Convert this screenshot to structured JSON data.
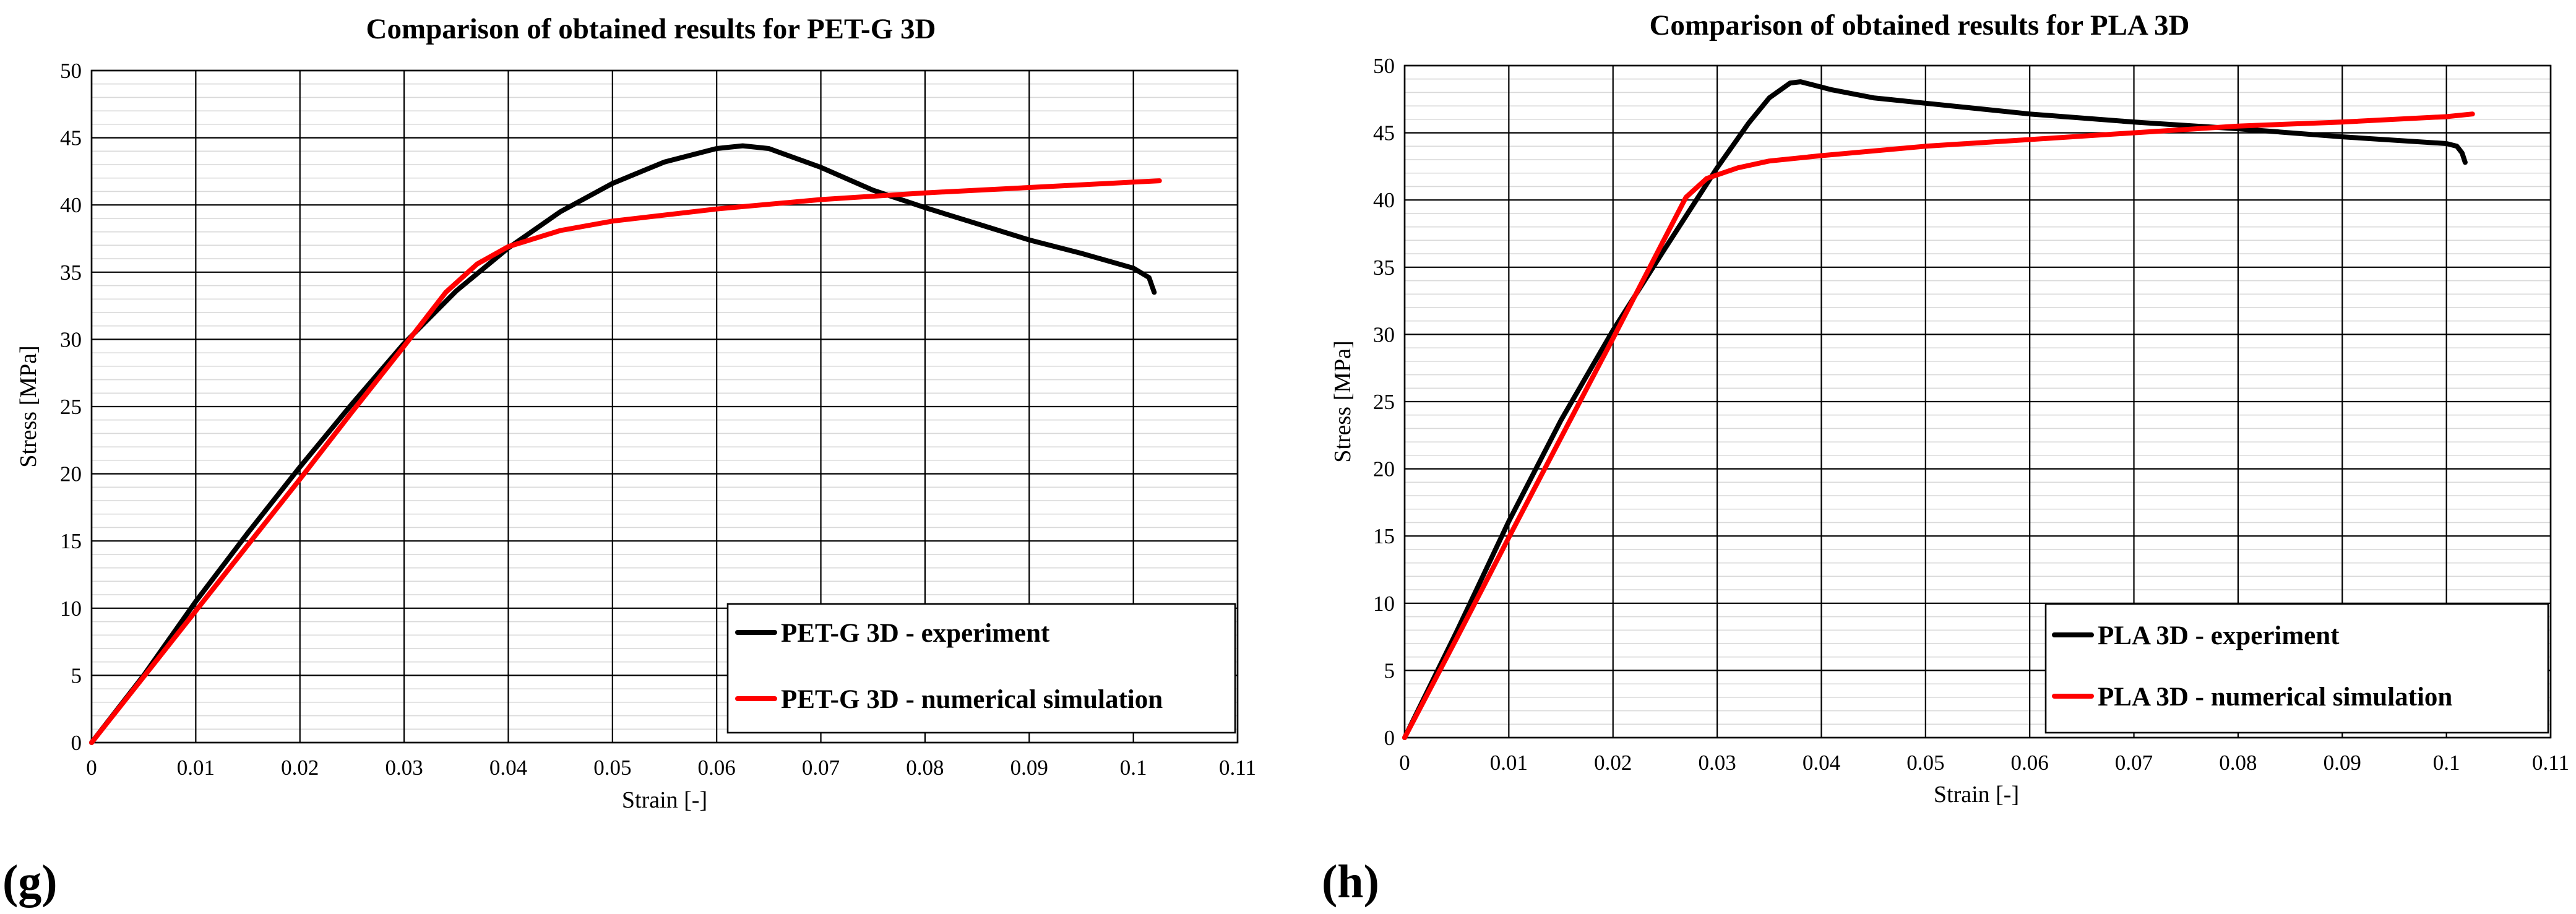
{
  "chart_data": [
    {
      "type": "line",
      "title": "Comparison of obtained results for PET-G 3D",
      "xlabel": "Strain [-]",
      "ylabel": "Stress [MPa]",
      "xlim": [
        0,
        0.11
      ],
      "ylim": [
        0,
        50
      ],
      "xticks": [
        "0",
        "0.01",
        "0.02",
        "0.03",
        "0.04",
        "0.05",
        "0.06",
        "0.07",
        "0.08",
        "0.09",
        "0.1",
        "0.11"
      ],
      "yticks": [
        "0",
        "5",
        "10",
        "15",
        "20",
        "25",
        "30",
        "35",
        "40",
        "45",
        "50"
      ],
      "grid": true,
      "legend_position": "bottom-right",
      "panel_label": "(g)",
      "series": [
        {
          "name": "PET-G 3D - experiment",
          "color": "#000000",
          "points": [
            [
              0,
              0
            ],
            [
              0.005,
              5
            ],
            [
              0.01,
              10.5
            ],
            [
              0.015,
              15.6
            ],
            [
              0.02,
              20.5
            ],
            [
              0.025,
              25.2
            ],
            [
              0.03,
              29.7
            ],
            [
              0.035,
              33.6
            ],
            [
              0.04,
              36.8
            ],
            [
              0.045,
              39.5
            ],
            [
              0.05,
              41.6
            ],
            [
              0.055,
              43.2
            ],
            [
              0.06,
              44.2
            ],
            [
              0.0625,
              44.4
            ],
            [
              0.065,
              44.2
            ],
            [
              0.07,
              42.8
            ],
            [
              0.075,
              41.1
            ],
            [
              0.08,
              39.8
            ],
            [
              0.085,
              38.6
            ],
            [
              0.09,
              37.4
            ],
            [
              0.095,
              36.4
            ],
            [
              0.1,
              35.3
            ],
            [
              0.1015,
              34.6
            ],
            [
              0.102,
              33.5
            ]
          ]
        },
        {
          "name": "PET-G 3D - numerical simulation",
          "color": "#ff0000",
          "points": [
            [
              0,
              0
            ],
            [
              0.005,
              4.9
            ],
            [
              0.01,
              9.8
            ],
            [
              0.015,
              14.7
            ],
            [
              0.02,
              19.6
            ],
            [
              0.025,
              24.6
            ],
            [
              0.03,
              29.5
            ],
            [
              0.034,
              33.5
            ],
            [
              0.037,
              35.6
            ],
            [
              0.04,
              36.9
            ],
            [
              0.045,
              38.1
            ],
            [
              0.05,
              38.8
            ],
            [
              0.06,
              39.7
            ],
            [
              0.07,
              40.4
            ],
            [
              0.08,
              40.9
            ],
            [
              0.09,
              41.3
            ],
            [
              0.1,
              41.7
            ],
            [
              0.1025,
              41.8
            ]
          ]
        }
      ]
    },
    {
      "type": "line",
      "title": "Comparison of obtained results for PLA 3D",
      "xlabel": "Strain [-]",
      "ylabel": "Stress [MPa]",
      "xlim": [
        0,
        0.11
      ],
      "ylim": [
        0,
        50
      ],
      "xticks": [
        "0",
        "0.01",
        "0.02",
        "0.03",
        "0.04",
        "0.05",
        "0.06",
        "0.07",
        "0.08",
        "0.09",
        "0.1",
        "0.11"
      ],
      "yticks": [
        "0",
        "5",
        "10",
        "15",
        "20",
        "25",
        "30",
        "35",
        "40",
        "45",
        "50"
      ],
      "grid": true,
      "legend_position": "bottom-right",
      "panel_label": "(h)",
      "series": [
        {
          "name": "PLA 3D - experiment",
          "color": "#000000",
          "points": [
            [
              0,
              0
            ],
            [
              0.005,
              7.9
            ],
            [
              0.01,
              16.1
            ],
            [
              0.015,
              23.6
            ],
            [
              0.02,
              30.3
            ],
            [
              0.025,
              36.4
            ],
            [
              0.03,
              42.4
            ],
            [
              0.033,
              45.7
            ],
            [
              0.035,
              47.6
            ],
            [
              0.037,
              48.7
            ],
            [
              0.038,
              48.8
            ],
            [
              0.039,
              48.6
            ],
            [
              0.041,
              48.2
            ],
            [
              0.045,
              47.6
            ],
            [
              0.05,
              47.2
            ],
            [
              0.06,
              46.4
            ],
            [
              0.07,
              45.8
            ],
            [
              0.08,
              45.3
            ],
            [
              0.09,
              44.7
            ],
            [
              0.1,
              44.2
            ],
            [
              0.101,
              44.0
            ],
            [
              0.1015,
              43.5
            ],
            [
              0.1018,
              42.8
            ]
          ]
        },
        {
          "name": "PLA 3D - numerical simulation",
          "color": "#ff0000",
          "points": [
            [
              0,
              0
            ],
            [
              0.005,
              7.4
            ],
            [
              0.01,
              14.9
            ],
            [
              0.015,
              22.3
            ],
            [
              0.02,
              29.7
            ],
            [
              0.025,
              37.2
            ],
            [
              0.027,
              40.2
            ],
            [
              0.029,
              41.6
            ],
            [
              0.032,
              42.4
            ],
            [
              0.035,
              42.9
            ],
            [
              0.04,
              43.3
            ],
            [
              0.05,
              44.0
            ],
            [
              0.06,
              44.5
            ],
            [
              0.07,
              45.0
            ],
            [
              0.08,
              45.5
            ],
            [
              0.09,
              45.8
            ],
            [
              0.1,
              46.2
            ],
            [
              0.1025,
              46.4
            ]
          ]
        }
      ]
    }
  ]
}
